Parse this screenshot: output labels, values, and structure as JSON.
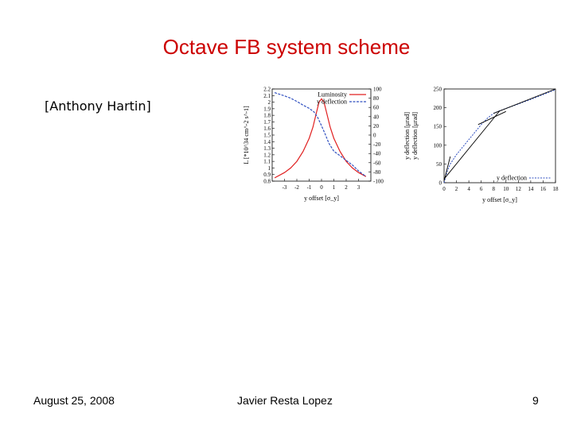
{
  "slide": {
    "title": "Octave FB system scheme",
    "attribution": "[Anthony Hartin]",
    "footer": {
      "date": "August 25, 2008",
      "author": "Javier Resta Lopez",
      "page": "9"
    }
  },
  "colors": {
    "title": "#cc0000",
    "luminosity": "#e02020",
    "deflection": "#3050c0"
  },
  "chart_data": [
    {
      "type": "line",
      "xlabel": "y offset [σ_y]",
      "ylabel_left": "L [*10^34 cm^-2 s^-1]",
      "xlim": [
        -4,
        4
      ],
      "ylim_left": [
        0.8,
        2.2
      ],
      "ylim_right": [
        -100,
        100
      ],
      "x_ticks": [
        "-3",
        "-2",
        "-1",
        "0",
        "1",
        "2",
        "3"
      ],
      "y_ticks_left": [
        "2.2",
        "2.1",
        "2",
        "1.9",
        "1.8",
        "1.7",
        "1.6",
        "1.5",
        "1.4",
        "1.3",
        "1.2",
        "1.1",
        "1",
        "0.9",
        "0.8"
      ],
      "y_ticks_right": [
        "100",
        "80",
        "60",
        "40",
        "20",
        "0",
        "-20",
        "-40",
        "-60",
        "-80",
        "-100"
      ],
      "legend_position": "top-right",
      "series": [
        {
          "name": "Luminosity",
          "axis": "left",
          "x": [
            -3.8,
            -3,
            -2.5,
            -2,
            -1.5,
            -1,
            -0.7,
            -0.4,
            -0.2,
            0,
            0.2,
            0.4,
            0.7,
            1,
            1.5,
            2,
            2.5,
            3,
            3.6
          ],
          "y": [
            0.85,
            0.93,
            1.0,
            1.1,
            1.25,
            1.45,
            1.62,
            1.85,
            2.0,
            2.05,
            2.0,
            1.85,
            1.62,
            1.45,
            1.25,
            1.1,
            1.0,
            0.93,
            0.87
          ]
        },
        {
          "name": "y deflection",
          "axis": "right",
          "x": [
            -3.8,
            -3,
            -2.5,
            -2,
            -1.5,
            -1,
            -0.6,
            -0.3,
            0,
            0.3,
            0.6,
            1,
            1.5,
            2,
            2.5,
            3,
            3.6
          ],
          "y": [
            92,
            85,
            80,
            73,
            65,
            58,
            50,
            38,
            20,
            2,
            -18,
            -35,
            -45,
            -55,
            -65,
            -78,
            -90
          ]
        }
      ]
    },
    {
      "type": "line",
      "xlabel": "y offset [σ_y]",
      "ylabel": "y deflection [μrad]",
      "ylabel_secondary": "y deflection [μrad]",
      "xlim": [
        0,
        18
      ],
      "ylim": [
        0,
        250
      ],
      "x_ticks": [
        "0",
        "2",
        "4",
        "6",
        "8",
        "10",
        "12",
        "14",
        "16",
        "18"
      ],
      "y_ticks": [
        "250",
        "200",
        "150",
        "100",
        "50",
        "0"
      ],
      "legend_position": "bottom-right",
      "series": [
        {
          "name": "y deflection",
          "x": [
            0,
            0.5,
            1,
            2,
            3,
            4,
            5,
            6,
            7,
            8,
            9,
            10,
            12,
            14,
            16,
            18
          ],
          "y": [
            0,
            30,
            50,
            75,
            95,
            115,
            135,
            155,
            172,
            185,
            192,
            198,
            210,
            222,
            235,
            248
          ]
        }
      ]
    }
  ]
}
